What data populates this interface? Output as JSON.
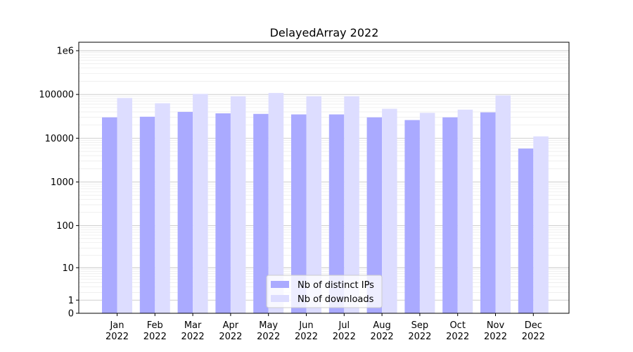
{
  "chart_data": {
    "type": "bar",
    "title": "DelayedArray 2022",
    "categories": [
      "Jan\n2022",
      "Feb\n2022",
      "Mar\n2022",
      "Apr\n2022",
      "May\n2022",
      "Jun\n2022",
      "Jul\n2022",
      "Aug\n2022",
      "Sep\n2022",
      "Oct\n2022",
      "Nov\n2022",
      "Dec\n2022"
    ],
    "series": [
      {
        "name": "Nb of distinct IPs",
        "color": "#aaaaff",
        "values": [
          30000,
          31000,
          40000,
          37000,
          36000,
          35000,
          35000,
          30000,
          26000,
          30000,
          39000,
          5800
        ]
      },
      {
        "name": "Nb of downloads",
        "color": "#ddddff",
        "values": [
          83000,
          63000,
          103000,
          91000,
          108000,
          91000,
          91000,
          47000,
          38000,
          45000,
          95000,
          11000
        ]
      }
    ],
    "y_scale": "log",
    "y_ticks": [
      "0",
      "1",
      "10",
      "100",
      "1000",
      "10000",
      "100000",
      "1e6"
    ],
    "grid": true,
    "legend_position": "bottom-center"
  }
}
